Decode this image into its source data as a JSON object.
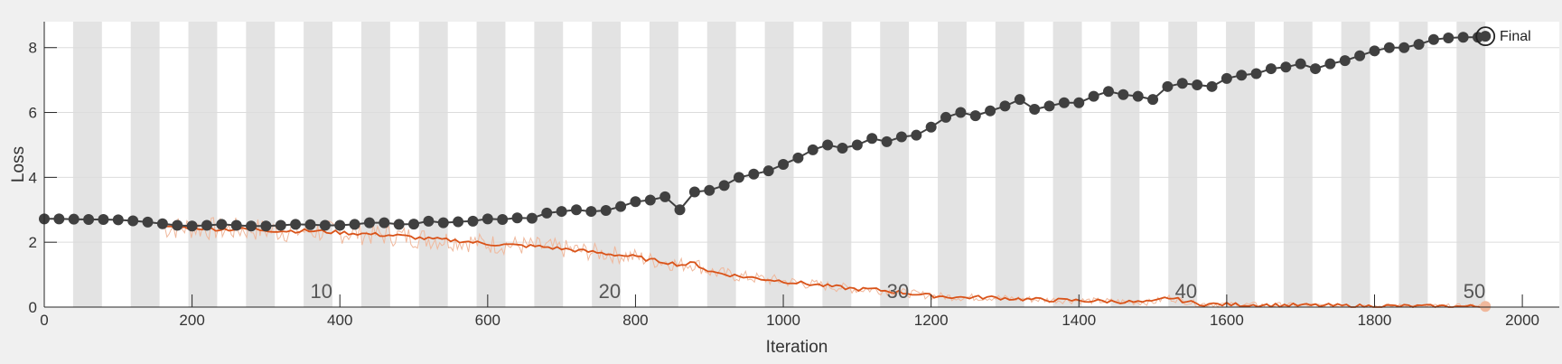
{
  "chart_data": {
    "type": "line",
    "xlabel": "Iteration",
    "ylabel": "Loss",
    "xlim": [
      0,
      2050
    ],
    "ylim": [
      0,
      8.8
    ],
    "xticks": [
      0,
      200,
      400,
      600,
      800,
      1000,
      1200,
      1400,
      1600,
      1800,
      2000
    ],
    "yticks": [
      0,
      2,
      4,
      6,
      8
    ],
    "grid": true,
    "epoch_band_width": 39,
    "epoch_labels": [
      {
        "label": "10",
        "x": 390
      },
      {
        "label": "20",
        "x": 780
      },
      {
        "label": "30",
        "x": 1170
      },
      {
        "label": "40",
        "x": 1560
      },
      {
        "label": "50",
        "x": 1950
      }
    ],
    "colors": {
      "background": "#f0f0f0",
      "plot_bg": "#ffffff",
      "band": "#e3e3e3",
      "grid": "#dcdcdc",
      "marker_series": "#404040",
      "loss_smoothed": "#d95319",
      "loss_raw": "#f0b89c"
    },
    "series": [
      {
        "kind": "markers",
        "x": [
          0,
          20,
          40,
          60,
          80,
          100,
          120,
          140,
          160,
          180,
          200,
          220,
          240,
          260,
          280,
          300,
          320,
          340,
          360,
          380,
          400,
          420,
          440,
          460,
          480,
          500,
          520,
          540,
          560,
          580,
          600,
          620,
          640,
          660,
          680,
          700,
          720,
          740,
          760,
          780,
          800,
          820,
          840,
          860,
          880,
          900,
          920,
          940,
          960,
          980,
          1000,
          1020,
          1040,
          1060,
          1080,
          1100,
          1120,
          1140,
          1160,
          1180,
          1200,
          1220,
          1240,
          1260,
          1280,
          1300,
          1320,
          1340,
          1360,
          1380,
          1400,
          1420,
          1440,
          1460,
          1480,
          1500,
          1520,
          1540,
          1560,
          1580,
          1600,
          1620,
          1640,
          1660,
          1680,
          1700,
          1720,
          1740,
          1760,
          1780,
          1800,
          1820,
          1840,
          1860,
          1880,
          1900,
          1920,
          1940,
          1950
        ],
        "values": [
          2.72,
          2.72,
          2.71,
          2.7,
          2.7,
          2.69,
          2.66,
          2.62,
          2.57,
          2.52,
          2.5,
          2.52,
          2.55,
          2.52,
          2.5,
          2.5,
          2.52,
          2.55,
          2.54,
          2.52,
          2.52,
          2.55,
          2.6,
          2.6,
          2.55,
          2.56,
          2.65,
          2.6,
          2.63,
          2.65,
          2.72,
          2.7,
          2.75,
          2.74,
          2.9,
          2.95,
          3.0,
          2.95,
          2.98,
          3.1,
          3.25,
          3.3,
          3.4,
          3.0,
          3.55,
          3.6,
          3.75,
          4.0,
          4.1,
          4.2,
          4.4,
          4.6,
          4.85,
          5.0,
          4.9,
          5.0,
          5.2,
          5.1,
          5.25,
          5.3,
          5.55,
          5.85,
          6.0,
          5.9,
          6.05,
          6.2,
          6.4,
          6.1,
          6.2,
          6.3,
          6.3,
          6.5,
          6.65,
          6.55,
          6.5,
          6.4,
          6.8,
          6.9,
          6.85,
          6.8,
          7.05,
          7.15,
          7.2,
          7.35,
          7.4,
          7.5,
          7.35,
          7.5,
          7.6,
          7.75,
          7.9,
          8.0,
          8.0,
          8.1,
          8.25,
          8.3,
          8.32,
          8.32,
          8.35
        ]
      },
      {
        "kind": "line",
        "x": [
          160,
          200,
          240,
          280,
          320,
          360,
          400,
          440,
          480,
          520,
          560,
          600,
          640,
          680,
          720,
          760,
          800,
          820,
          840,
          860,
          880,
          900,
          940,
          980,
          1020,
          1060,
          1100,
          1120,
          1140,
          1160,
          1200,
          1240,
          1280,
          1320,
          1360,
          1400,
          1440,
          1480,
          1500,
          1520,
          1560,
          1600,
          1640,
          1680,
          1720,
          1760,
          1800,
          1840,
          1880,
          1920,
          1950
        ],
        "values": [
          2.45,
          2.45,
          2.4,
          2.4,
          2.35,
          2.35,
          2.3,
          2.25,
          2.2,
          2.1,
          2.05,
          1.95,
          1.9,
          1.85,
          1.75,
          1.65,
          1.55,
          1.45,
          1.4,
          1.3,
          1.35,
          1.1,
          0.95,
          0.85,
          0.75,
          0.65,
          0.55,
          0.55,
          0.5,
          0.45,
          0.35,
          0.3,
          0.3,
          0.25,
          0.22,
          0.2,
          0.18,
          0.15,
          0.15,
          0.3,
          0.1,
          0.08,
          0.07,
          0.06,
          0.05,
          0.04,
          0.03,
          0.03,
          0.02,
          0.02,
          0.02
        ]
      }
    ],
    "final_point": {
      "x": 1950,
      "y": 8.35
    }
  },
  "legend": {
    "final_label": "Final"
  }
}
